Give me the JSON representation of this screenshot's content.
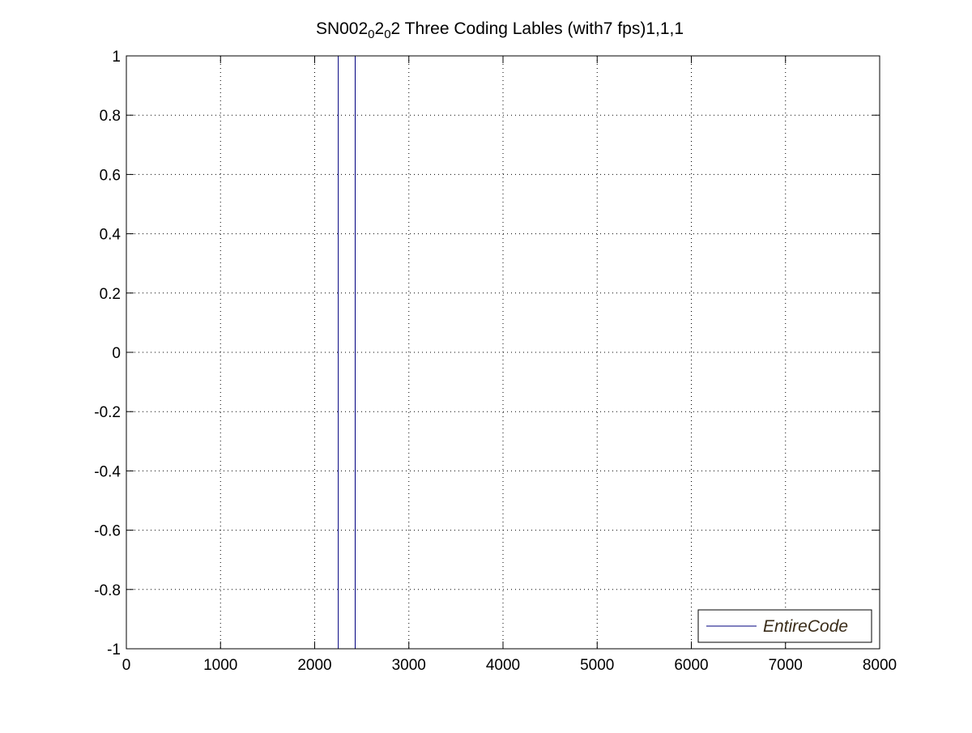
{
  "chart_data": {
    "type": "line",
    "title_parts": [
      {
        "text": "SN002",
        "sub": false
      },
      {
        "text": "0",
        "sub": true
      },
      {
        "text": "2",
        "sub": false
      },
      {
        "text": "0",
        "sub": true
      },
      {
        "text": "2 Three Coding Lables (with7 fps)1,1,1",
        "sub": false
      }
    ],
    "xlabel": "",
    "ylabel": "",
    "xlim": [
      0,
      8000
    ],
    "ylim": [
      -1,
      1
    ],
    "x_ticks": [
      0,
      1000,
      2000,
      3000,
      4000,
      5000,
      6000,
      7000,
      8000
    ],
    "y_ticks": [
      -1,
      -0.8,
      -0.6,
      -0.4,
      -0.2,
      0,
      0.2,
      0.4,
      0.6,
      0.8,
      1
    ],
    "grid": true,
    "legend_position": "bottom-right",
    "series": [
      {
        "name": "EntireCode",
        "color": "#00007f",
        "segments": [
          {
            "x": [
              2250,
              2250
            ],
            "y": [
              -1,
              1
            ]
          },
          {
            "x": [
              2430,
              2430
            ],
            "y": [
              -1,
              1
            ]
          }
        ]
      }
    ],
    "colors": {
      "axis": "#000000",
      "grid": "#000000",
      "legend_text": "#3a2c19"
    }
  }
}
